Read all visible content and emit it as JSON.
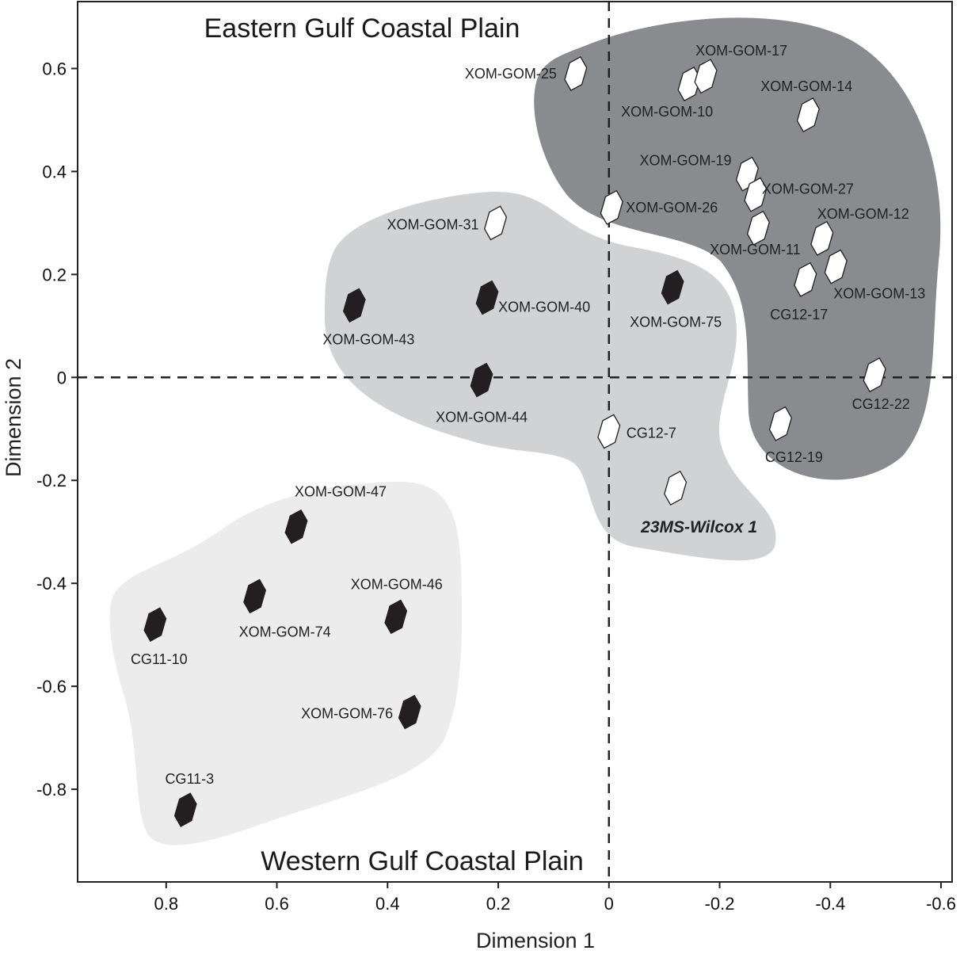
{
  "chart_data": {
    "type": "scatter",
    "xlabel": "Dimension 1",
    "ylabel": "Dimension 2",
    "xlim": [
      0.96,
      -0.62
    ],
    "ylim": [
      -0.98,
      0.73
    ],
    "x_reversed": true,
    "xticks": [
      0.8,
      0.6,
      0.4,
      0.2,
      0,
      -0.2,
      -0.4,
      -0.6
    ],
    "xtick_labels": [
      "0.8",
      "0.6",
      "0.4",
      "0.2",
      "0",
      "-0.2",
      "-0.4",
      "-0.6"
    ],
    "yticks": [
      0.6,
      0.4,
      0.2,
      0,
      -0.2,
      -0.4,
      -0.6,
      -0.8
    ],
    "ytick_labels": [
      "0.6",
      "0.4",
      "0.2",
      "0",
      "-0.2",
      "-0.4",
      "-0.6",
      "-0.8"
    ],
    "reference_lines": {
      "x": 0,
      "y": 0,
      "style": "dashed"
    },
    "annotations": {
      "top": "Eastern Gulf Coastal Plain",
      "bottom": "Western Gulf Coastal Plain"
    },
    "colors": {
      "group_east": "#898b8e",
      "group_mid": "#d1d2d4",
      "group_west": "#ececec",
      "marker_filled": "#231f20",
      "marker_open": "#ffffff",
      "marker_stroke": "#231f20",
      "axis": "#222222"
    },
    "series": [
      {
        "name": "filled",
        "marker": "hexagon-filled",
        "points": [
          {
            "x": 0.46,
            "y": 0.14,
            "label": "XOM-GOM-43"
          },
          {
            "x": 0.22,
            "y": 0.155,
            "label": "XOM-GOM-40"
          },
          {
            "x": 0.23,
            "y": -0.005,
            "label": "XOM-GOM-44"
          },
          {
            "x": -0.115,
            "y": 0.175,
            "label": "XOM-GOM-75"
          },
          {
            "x": 0.565,
            "y": -0.29,
            "label": "XOM-GOM-47"
          },
          {
            "x": 0.64,
            "y": -0.425,
            "label": "XOM-GOM-74"
          },
          {
            "x": 0.385,
            "y": -0.465,
            "label": "XOM-GOM-46"
          },
          {
            "x": 0.82,
            "y": -0.48,
            "label": "CG11-10"
          },
          {
            "x": 0.36,
            "y": -0.65,
            "label": "XOM-GOM-76"
          },
          {
            "x": 0.765,
            "y": -0.84,
            "label": "CG11-3"
          }
        ]
      },
      {
        "name": "open",
        "marker": "hexagon-open",
        "points": [
          {
            "x": 0.06,
            "y": 0.59,
            "label": "XOM-GOM-25"
          },
          {
            "x": -0.145,
            "y": 0.57,
            "label": "XOM-GOM-10"
          },
          {
            "x": -0.175,
            "y": 0.585,
            "label": "XOM-GOM-17"
          },
          {
            "x": -0.36,
            "y": 0.51,
            "label": "XOM-GOM-14"
          },
          {
            "x": -0.25,
            "y": 0.395,
            "label": "XOM-GOM-19"
          },
          {
            "x": -0.265,
            "y": 0.355,
            "label": "XOM-GOM-27"
          },
          {
            "x": 0.205,
            "y": 0.3,
            "label": "XOM-GOM-31"
          },
          {
            "x": -0.005,
            "y": 0.33,
            "label": "XOM-GOM-26"
          },
          {
            "x": -0.27,
            "y": 0.29,
            "label": "XOM-GOM-11"
          },
          {
            "x": -0.385,
            "y": 0.27,
            "label": "XOM-GOM-12"
          },
          {
            "x": -0.41,
            "y": 0.215,
            "label": "XOM-GOM-13"
          },
          {
            "x": -0.355,
            "y": 0.19,
            "label": "CG12-17"
          },
          {
            "x": -0.48,
            "y": 0.005,
            "label": "CG12-22"
          },
          {
            "x": -0.31,
            "y": -0.09,
            "label": "CG12-19"
          },
          {
            "x": 0.0,
            "y": -0.105,
            "label": "CG12-7"
          },
          {
            "x": -0.12,
            "y": -0.215,
            "label": "23MS-Wilcox 1"
          }
        ]
      }
    ]
  }
}
